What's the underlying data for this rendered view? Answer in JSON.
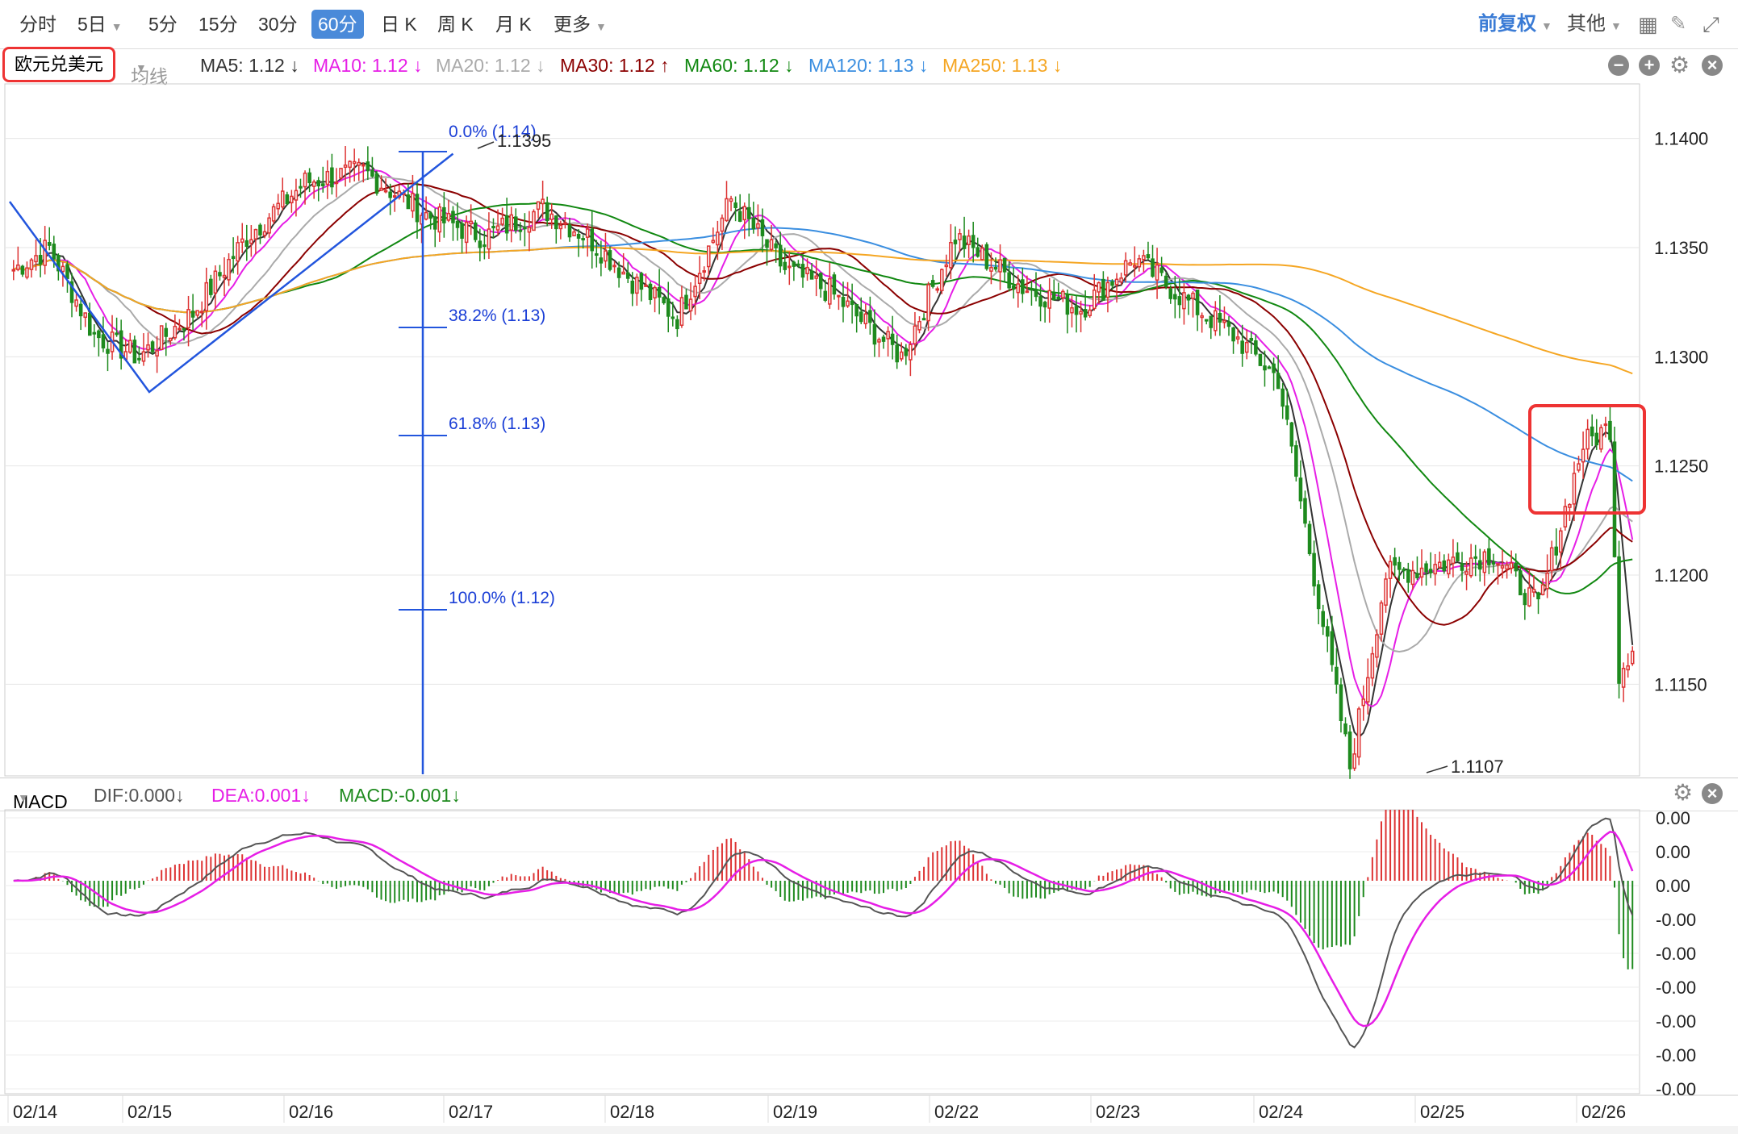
{
  "toolbar": {
    "tabs": [
      {
        "label": "分时",
        "active": false,
        "caret": false
      },
      {
        "label": "5日",
        "active": false,
        "caret": true
      },
      {
        "label": "5分",
        "active": false,
        "caret": false
      },
      {
        "label": "15分",
        "active": false,
        "caret": false
      },
      {
        "label": "30分",
        "active": false,
        "caret": false
      },
      {
        "label": "60分",
        "active": true,
        "caret": false
      },
      {
        "label": "日 K",
        "active": false,
        "caret": false
      },
      {
        "label": "周 K",
        "active": false,
        "caret": false
      },
      {
        "label": "月 K",
        "active": false,
        "caret": false
      },
      {
        "label": "更多",
        "active": false,
        "caret": true
      }
    ],
    "adjust_label": "前复权",
    "other_label": "其他"
  },
  "symbol": "欧元兑美元",
  "indicator_select": "均线",
  "ma_legend": [
    {
      "label": "MA5: 1.12 ↓",
      "color": "#333333"
    },
    {
      "label": "MA10: 1.12 ↓",
      "color": "#e61ee6"
    },
    {
      "label": "MA20: 1.12 ↓",
      "color": "#aaaaaa"
    },
    {
      "label": "MA30: 1.12 ↑",
      "color": "#8b0000"
    },
    {
      "label": "MA60: 1.12 ↓",
      "color": "#118811"
    },
    {
      "label": "MA120: 1.13 ↓",
      "color": "#3a8ee0"
    },
    {
      "label": "MA250: 1.13 ↓",
      "color": "#f5a623"
    }
  ],
  "macd_legend": {
    "name": "MACD",
    "dif": "DIF:0.000↓",
    "dea": "DEA:0.001↓",
    "macd": "MACD:-0.001↓"
  },
  "chart_data": {
    "type": "candlestick",
    "price_axis": {
      "ticks": [
        "1.1400",
        "1.1350",
        "1.1300",
        "1.1250",
        "1.1200",
        "1.1150"
      ],
      "range": [
        1.1108,
        1.1425
      ]
    },
    "macd_axis": {
      "ticks": [
        "0.00",
        "0.00",
        "0.00",
        "-0.00",
        "-0.00",
        "-0.00",
        "-0.00",
        "-0.00",
        "-0.00"
      ],
      "range": [
        -0.006,
        0.002
      ]
    },
    "dates": [
      "02/14",
      "02/15",
      "02/16",
      "02/17",
      "02/18",
      "02/19",
      "02/22",
      "02/23",
      "02/24",
      "02/25",
      "02/26"
    ],
    "annotations": {
      "high": "1.1395",
      "low": "1.1107"
    },
    "fibonacci": [
      {
        "label": "0.0% (1.14)"
      },
      {
        "label": "38.2% (1.13)"
      },
      {
        "label": "61.8% (1.13)"
      },
      {
        "label": "100.0% (1.12)"
      }
    ],
    "close_waypoints": [
      [
        0,
        1.134
      ],
      [
        8,
        1.135
      ],
      [
        18,
        1.131
      ],
      [
        28,
        1.13
      ],
      [
        40,
        1.132
      ],
      [
        52,
        1.1355
      ],
      [
        65,
        1.138
      ],
      [
        78,
        1.1385
      ],
      [
        92,
        1.1365
      ],
      [
        105,
        1.1355
      ],
      [
        118,
        1.1368
      ],
      [
        128,
        1.1355
      ],
      [
        138,
        1.1335
      ],
      [
        148,
        1.1318
      ],
      [
        160,
        1.1372
      ],
      [
        172,
        1.134
      ],
      [
        182,
        1.133
      ],
      [
        198,
        1.13
      ],
      [
        210,
        1.1355
      ],
      [
        225,
        1.1332
      ],
      [
        238,
        1.1322
      ],
      [
        250,
        1.1345
      ],
      [
        262,
        1.1325
      ],
      [
        272,
        1.131
      ],
      [
        282,
        1.129
      ],
      [
        290,
        1.12
      ],
      [
        298,
        1.1112
      ],
      [
        306,
        1.12
      ],
      [
        318,
        1.1205
      ],
      [
        330,
        1.121
      ],
      [
        340,
        1.1185
      ],
      [
        350,
        1.126
      ],
      [
        356,
        1.1268
      ],
      [
        358,
        1.1155
      ],
      [
        361,
        1.1168
      ]
    ],
    "ma_periods": [
      5,
      10,
      20,
      30,
      60,
      120,
      250
    ],
    "colors": {
      "up": "#dd3333",
      "down": "#1e8a1e",
      "dif": "#555555",
      "dea": "#e61ee6",
      "fib": "#1a3ed6"
    }
  }
}
